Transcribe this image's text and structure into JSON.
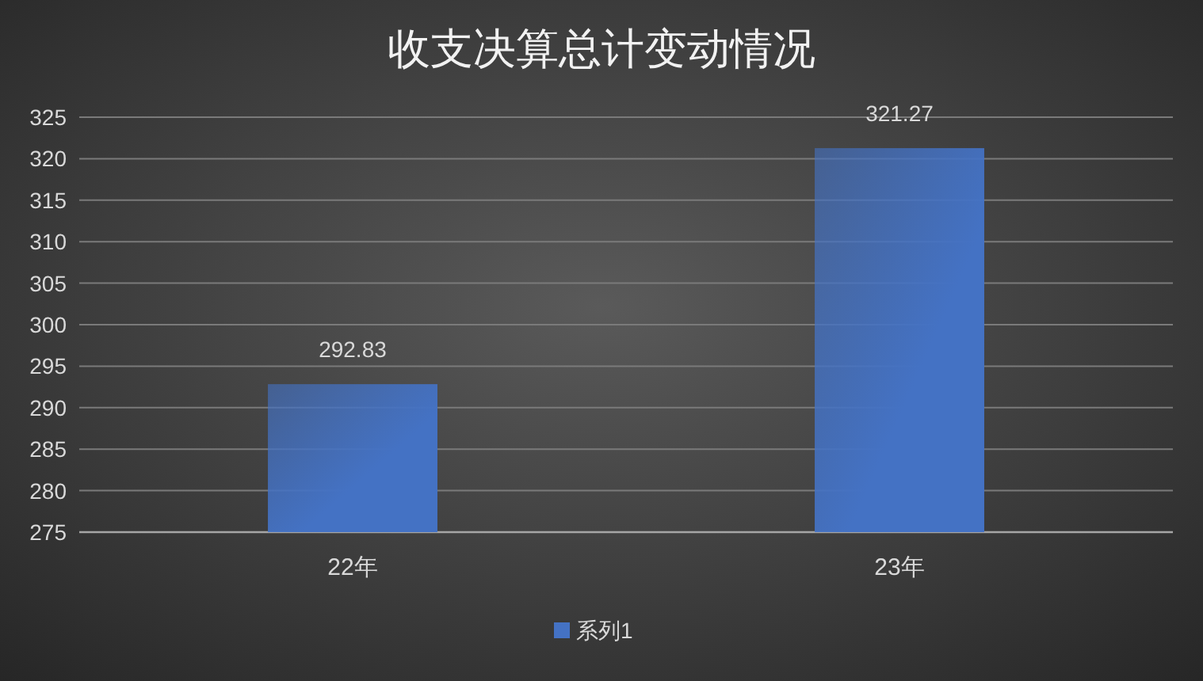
{
  "chart_data": {
    "type": "bar",
    "title": "收支决算总计变动情况",
    "categories": [
      "22年",
      "23年"
    ],
    "series": [
      {
        "name": "系列1",
        "color": "#4472c4",
        "values": [
          292.83,
          321.27
        ]
      }
    ],
    "ylim": [
      275,
      325
    ],
    "yticks": [
      275,
      280,
      285,
      290,
      295,
      300,
      305,
      310,
      315,
      320,
      325
    ],
    "grid": "y",
    "legend": "bottom",
    "data_labels": true
  }
}
